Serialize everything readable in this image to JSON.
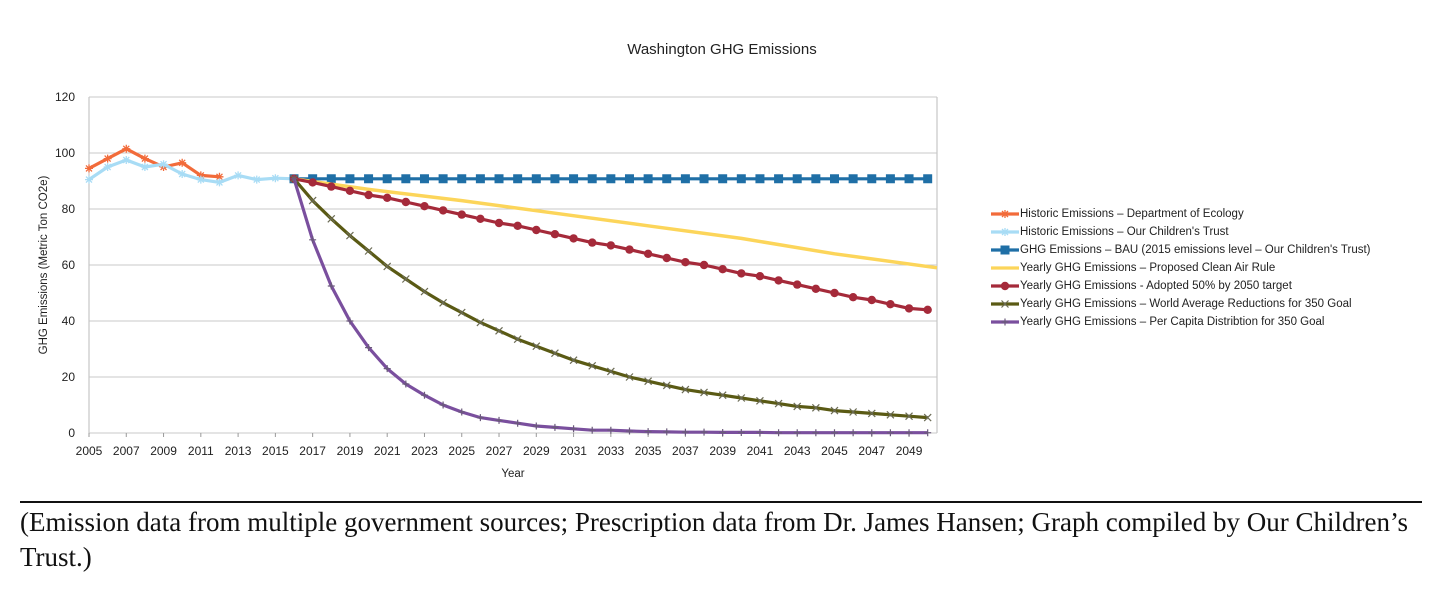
{
  "chart_data": {
    "type": "line",
    "title": "Washington GHG Emissions",
    "xlabel": "Year",
    "ylabel": "GHG Emissions (Metric Ton CO2e)",
    "xlim": [
      2005,
      2050.5
    ],
    "ylim": [
      0,
      120
    ],
    "x_ticks": [
      "2005",
      "2007",
      "2009",
      "2011",
      "2013",
      "2015",
      "2017",
      "2019",
      "2021",
      "2023",
      "2025",
      "2027",
      "2029",
      "2031",
      "2033",
      "2035",
      "2037",
      "2039",
      "2041",
      "2043",
      "2045",
      "2047",
      "2049"
    ],
    "y_ticks": [
      "0",
      "20",
      "40",
      "60",
      "80",
      "100",
      "120"
    ],
    "grid": "horizontal",
    "legend_position": "right",
    "series": [
      {
        "name": "Historic Emissions – Department of Ecology",
        "color": "#f26b3a",
        "marker": "star",
        "x": [
          2005,
          2006,
          2007,
          2008,
          2009,
          2010,
          2011,
          2012
        ],
        "y": [
          94.5,
          98,
          101.5,
          98,
          95,
          96.5,
          92,
          91.5
        ]
      },
      {
        "name": "Historic Emissions – Our Children's Trust",
        "color": "#a8dcf5",
        "marker": "star",
        "x": [
          2005,
          2006,
          2007,
          2008,
          2009,
          2010,
          2011,
          2012,
          2013,
          2014,
          2015,
          2016
        ],
        "y": [
          90.5,
          95,
          97.5,
          95,
          96,
          92.5,
          90.5,
          89.5,
          92,
          90.5,
          91,
          90.8
        ]
      },
      {
        "name": "GHG Emissions – BAU (2015 emissions level – Our Children's Trust)",
        "color": "#1f6fa6",
        "marker": "square",
        "x": [
          2016,
          2017,
          2018,
          2019,
          2020,
          2021,
          2022,
          2023,
          2024,
          2025,
          2026,
          2027,
          2028,
          2029,
          2030,
          2031,
          2032,
          2033,
          2034,
          2035,
          2036,
          2037,
          2038,
          2039,
          2040,
          2041,
          2042,
          2043,
          2044,
          2045,
          2046,
          2047,
          2048,
          2049,
          2050
        ],
        "y": [
          90.8,
          90.8,
          90.8,
          90.8,
          90.8,
          90.8,
          90.8,
          90.8,
          90.8,
          90.8,
          90.8,
          90.8,
          90.8,
          90.8,
          90.8,
          90.8,
          90.8,
          90.8,
          90.8,
          90.8,
          90.8,
          90.8,
          90.8,
          90.8,
          90.8,
          90.8,
          90.8,
          90.8,
          90.8,
          90.8,
          90.8,
          90.8,
          90.8,
          90.8,
          90.8
        ]
      },
      {
        "name": "Yearly GHG Emissions – Proposed Clean Air Rule",
        "color": "#fcd55a",
        "marker": "none",
        "x": [
          2016,
          2020,
          2025,
          2030,
          2035,
          2040,
          2045,
          2050.5
        ],
        "y": [
          90.8,
          87,
          83,
          78.5,
          74,
          69.5,
          64,
          59
        ]
      },
      {
        "name": "Yearly GHG Emissions - Adopted 50% by 2050 target",
        "color": "#a52a3a",
        "marker": "circle",
        "x": [
          2016,
          2017,
          2018,
          2019,
          2020,
          2021,
          2022,
          2023,
          2024,
          2025,
          2026,
          2027,
          2028,
          2029,
          2030,
          2031,
          2032,
          2033,
          2034,
          2035,
          2036,
          2037,
          2038,
          2039,
          2040,
          2041,
          2042,
          2043,
          2044,
          2045,
          2046,
          2047,
          2048,
          2049,
          2050
        ],
        "y": [
          90.8,
          89.5,
          88,
          86.5,
          85,
          84,
          82.5,
          81,
          79.5,
          78,
          76.5,
          75,
          74,
          72.5,
          71,
          69.5,
          68,
          67,
          65.5,
          64,
          62.5,
          61,
          60,
          58.5,
          57,
          56,
          54.5,
          53,
          51.5,
          50,
          48.5,
          47.5,
          46,
          44.5,
          44
        ]
      },
      {
        "name": "Yearly GHG Emissions – World Average Reductions for 350 Goal",
        "color": "#5a5a14",
        "marker": "x",
        "x": [
          2016,
          2017,
          2018,
          2019,
          2020,
          2021,
          2022,
          2023,
          2024,
          2025,
          2026,
          2027,
          2028,
          2029,
          2030,
          2031,
          2032,
          2033,
          2034,
          2035,
          2036,
          2037,
          2038,
          2039,
          2040,
          2041,
          2042,
          2043,
          2044,
          2045,
          2046,
          2047,
          2048,
          2049,
          2050
        ],
        "y": [
          90.8,
          83,
          76.5,
          70.5,
          65,
          59.5,
          55,
          50.5,
          46.5,
          43,
          39.5,
          36.5,
          33.5,
          31,
          28.5,
          26,
          24,
          22,
          20,
          18.5,
          17,
          15.5,
          14.5,
          13.5,
          12.5,
          11.5,
          10.5,
          9.5,
          9,
          8,
          7.5,
          7,
          6.5,
          6,
          5.5
        ]
      },
      {
        "name": "Yearly GHG Emissions – Per Capita Distribtion for 350 Goal",
        "color": "#7a4f9e",
        "marker": "plus",
        "x": [
          2016,
          2017,
          2018,
          2019,
          2020,
          2021,
          2022,
          2023,
          2024,
          2025,
          2026,
          2027,
          2028,
          2029,
          2030,
          2031,
          2032,
          2033,
          2034,
          2035,
          2036,
          2037,
          2038,
          2039,
          2040,
          2041,
          2042,
          2043,
          2044,
          2045,
          2046,
          2047,
          2048,
          2049,
          2050
        ],
        "y": [
          90.8,
          69,
          52.5,
          40,
          30.5,
          23,
          17.5,
          13.5,
          10,
          7.5,
          5.5,
          4.5,
          3.5,
          2.5,
          2,
          1.5,
          1,
          1,
          0.7,
          0.5,
          0.4,
          0.3,
          0.3,
          0.2,
          0.2,
          0.2,
          0.1,
          0.1,
          0.1,
          0.1,
          0.1,
          0.1,
          0.1,
          0.1,
          0.1
        ]
      }
    ]
  },
  "caption": "(Emission data from multiple government sources; Prescription data from Dr. James Hansen; Graph compiled by Our Children’s Trust.)"
}
